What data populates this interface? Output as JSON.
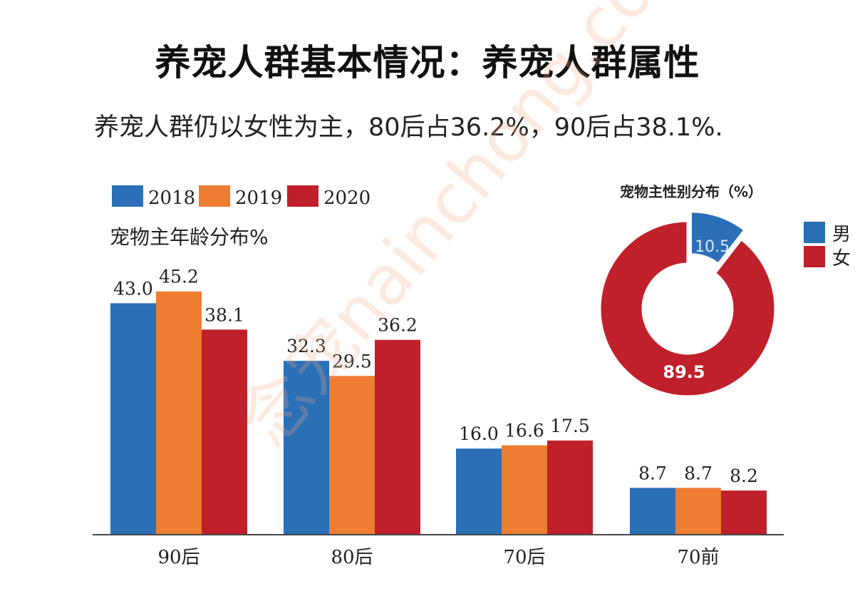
{
  "header": {
    "title": "养宠人群基本情况：养宠人群属性",
    "subtitle": "养宠人群仍以女性为主，80后占36.2%，90后占38.1%."
  },
  "watermark": "念宠nainchong.com",
  "chart_data": [
    {
      "type": "bar",
      "title": "宠物主年龄分布%",
      "categories": [
        "90后",
        "80后",
        "70后",
        "70前"
      ],
      "series": [
        {
          "name": "2018",
          "values": [
            43.0,
            32.3,
            16.0,
            8.7
          ],
          "color": "#2b6fb7"
        },
        {
          "name": "2019",
          "values": [
            45.2,
            29.5,
            16.6,
            8.7
          ],
          "color": "#ed7d31"
        },
        {
          "name": "2020",
          "values": [
            38.1,
            36.2,
            17.5,
            8.2
          ],
          "color": "#c0202a"
        }
      ],
      "value_labels": [
        [
          "43.0",
          "32.3",
          "16.0",
          "8.7"
        ],
        [
          "45.2",
          "29.5",
          "16.6",
          "8.7"
        ],
        [
          "38.1",
          "36.2",
          "17.5",
          "8.2"
        ]
      ],
      "ylim": [
        0,
        50
      ],
      "grid": false,
      "legend_position": "top-left"
    },
    {
      "type": "pie",
      "title": "宠物主性别分布（%）",
      "slices": [
        {
          "name": "男",
          "value": 10.5,
          "label": "10.5",
          "color": "#2b6fb7"
        },
        {
          "name": "女",
          "value": 89.5,
          "label": "89.5",
          "color": "#c0202a"
        }
      ],
      "donut": true,
      "legend_position": "right"
    }
  ]
}
